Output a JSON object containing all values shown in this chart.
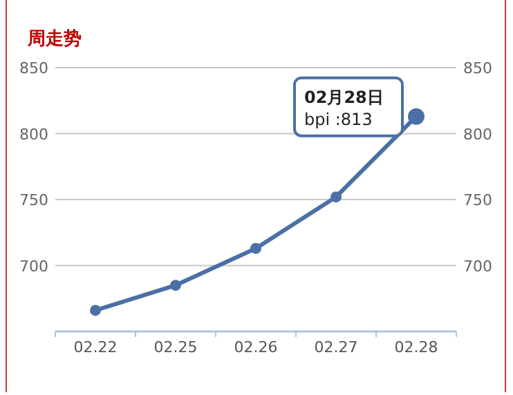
{
  "chart_data": {
    "type": "line",
    "title": "周走势",
    "categories": [
      "02.22",
      "02.25",
      "02.26",
      "02.27",
      "02.28"
    ],
    "series": [
      {
        "color": "#4a70a6",
        "values": [
          666,
          685,
          713,
          752,
          813
        ]
      }
    ],
    "ylim": [
      650,
      850
    ],
    "yticks": [
      700,
      750,
      800,
      850
    ],
    "y2lim": [
      650,
      850
    ],
    "y2ticks": [
      700,
      750,
      800,
      850
    ],
    "grid": "y",
    "marker": "circle",
    "line_style": "solid",
    "annotations": [
      {
        "text": "02月28日\nbpi :813",
        "x": "02.28",
        "y": 813
      }
    ]
  }
}
